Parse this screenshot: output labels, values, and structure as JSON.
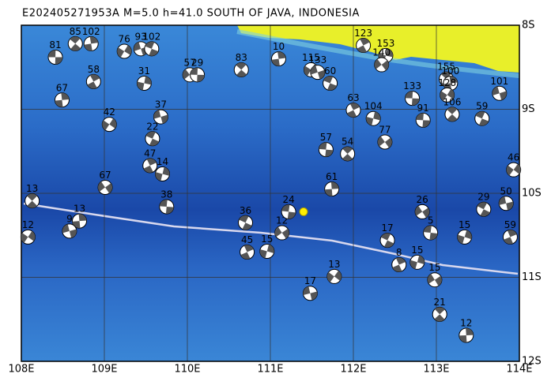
{
  "title": "E202405271953A  M=5.0  h=41.0  SOUTH OF JAVA, INDONESIA",
  "map": {
    "lonlim": [
      108,
      114
    ],
    "latlim": [
      8,
      12
    ],
    "xticks": [
      {
        "value": 108,
        "label": "108E"
      },
      {
        "value": 109,
        "label": "109E"
      },
      {
        "value": 110,
        "label": "110E"
      },
      {
        "value": 111,
        "label": "111E"
      },
      {
        "value": 112,
        "label": "112E"
      },
      {
        "value": 113,
        "label": "113E"
      },
      {
        "value": 114,
        "label": "114E"
      }
    ],
    "yticks": [
      {
        "value": 8,
        "label": "8S"
      },
      {
        "value": 9,
        "label": "9S"
      },
      {
        "value": 10,
        "label": "10S"
      },
      {
        "value": 11,
        "label": "11S"
      },
      {
        "value": 12,
        "label": "12S"
      }
    ],
    "mainshock": {
      "lon": 111.4,
      "lat": 10.22,
      "color": "#ffee00"
    },
    "events": [
      {
        "lon": 108.41,
        "lat": 8.38,
        "depth": "81"
      },
      {
        "lon": 108.65,
        "lat": 8.22,
        "depth": "85"
      },
      {
        "lon": 108.84,
        "lat": 8.22,
        "depth": "102"
      },
      {
        "lon": 109.24,
        "lat": 8.31,
        "depth": "76"
      },
      {
        "lon": 109.44,
        "lat": 8.28,
        "depth": "93"
      },
      {
        "lon": 109.57,
        "lat": 8.28,
        "depth": "102"
      },
      {
        "lon": 108.87,
        "lat": 8.67,
        "depth": "58"
      },
      {
        "lon": 109.48,
        "lat": 8.69,
        "depth": "31"
      },
      {
        "lon": 110.03,
        "lat": 8.59,
        "depth": "57"
      },
      {
        "lon": 110.12,
        "lat": 8.59,
        "depth": "29"
      },
      {
        "lon": 110.65,
        "lat": 8.53,
        "depth": "83"
      },
      {
        "lon": 111.1,
        "lat": 8.4,
        "depth": "10"
      },
      {
        "lon": 111.49,
        "lat": 8.53,
        "depth": "115"
      },
      {
        "lon": 111.57,
        "lat": 8.56,
        "depth": "133"
      },
      {
        "lon": 111.72,
        "lat": 8.69,
        "depth": "60"
      },
      {
        "lon": 112.12,
        "lat": 8.24,
        "depth": "123"
      },
      {
        "lon": 112.39,
        "lat": 8.36,
        "depth": "153"
      },
      {
        "lon": 112.34,
        "lat": 8.47,
        "depth": "140"
      },
      {
        "lon": 112.71,
        "lat": 8.87,
        "depth": "133"
      },
      {
        "lon": 113.12,
        "lat": 8.64,
        "depth": "155"
      },
      {
        "lon": 113.17,
        "lat": 8.69,
        "depth": "100"
      },
      {
        "lon": 113.13,
        "lat": 8.83,
        "depth": "128"
      },
      {
        "lon": 113.76,
        "lat": 8.81,
        "depth": "101"
      },
      {
        "lon": 113.55,
        "lat": 9.11,
        "depth": "59"
      },
      {
        "lon": 112.0,
        "lat": 9.01,
        "depth": "63"
      },
      {
        "lon": 112.24,
        "lat": 9.11,
        "depth": "104"
      },
      {
        "lon": 112.38,
        "lat": 9.39,
        "depth": "77"
      },
      {
        "lon": 112.84,
        "lat": 9.13,
        "depth": "91"
      },
      {
        "lon": 113.19,
        "lat": 9.06,
        "depth": "106"
      },
      {
        "lon": 108.49,
        "lat": 8.89,
        "depth": "67"
      },
      {
        "lon": 109.06,
        "lat": 9.18,
        "depth": "42"
      },
      {
        "lon": 109.68,
        "lat": 9.09,
        "depth": "37"
      },
      {
        "lon": 109.58,
        "lat": 9.35,
        "depth": "22"
      },
      {
        "lon": 109.55,
        "lat": 9.67,
        "depth": "47"
      },
      {
        "lon": 109.7,
        "lat": 9.77,
        "depth": "14"
      },
      {
        "lon": 109.01,
        "lat": 9.93,
        "depth": "67"
      },
      {
        "lon": 109.75,
        "lat": 10.16,
        "depth": "38"
      },
      {
        "lon": 108.13,
        "lat": 10.09,
        "depth": "13"
      },
      {
        "lon": 108.7,
        "lat": 10.33,
        "depth": "13"
      },
      {
        "lon": 108.08,
        "lat": 10.52,
        "depth": "12"
      },
      {
        "lon": 108.58,
        "lat": 10.45,
        "depth": "9"
      },
      {
        "lon": 110.7,
        "lat": 10.35,
        "depth": "36"
      },
      {
        "lon": 110.72,
        "lat": 10.7,
        "depth": "45"
      },
      {
        "lon": 110.96,
        "lat": 10.69,
        "depth": "15"
      },
      {
        "lon": 111.14,
        "lat": 10.47,
        "depth": "12"
      },
      {
        "lon": 111.67,
        "lat": 9.48,
        "depth": "57"
      },
      {
        "lon": 111.93,
        "lat": 9.53,
        "depth": "54"
      },
      {
        "lon": 111.74,
        "lat": 9.95,
        "depth": "61"
      },
      {
        "lon": 111.77,
        "lat": 10.99,
        "depth": "13"
      },
      {
        "lon": 111.48,
        "lat": 11.19,
        "depth": "17"
      },
      {
        "lon": 112.41,
        "lat": 10.56,
        "depth": "17"
      },
      {
        "lon": 112.55,
        "lat": 10.85,
        "depth": "8"
      },
      {
        "lon": 112.77,
        "lat": 10.82,
        "depth": "15"
      },
      {
        "lon": 112.83,
        "lat": 10.22,
        "depth": "26"
      },
      {
        "lon": 112.93,
        "lat": 10.47,
        "depth": "5"
      },
      {
        "lon": 113.04,
        "lat": 11.44,
        "depth": "21"
      },
      {
        "lon": 113.36,
        "lat": 11.69,
        "depth": "12"
      },
      {
        "lon": 113.93,
        "lat": 9.72,
        "depth": "46"
      },
      {
        "lon": 113.84,
        "lat": 10.12,
        "depth": "50"
      },
      {
        "lon": 113.57,
        "lat": 10.19,
        "depth": "29"
      },
      {
        "lon": 113.89,
        "lat": 10.52,
        "depth": "59"
      },
      {
        "lon": 113.34,
        "lat": 10.52,
        "depth": "15"
      },
      {
        "lon": 112.98,
        "lat": 11.03,
        "depth": "15"
      },
      {
        "lon": 111.22,
        "lat": 10.22,
        "depth": "24"
      }
    ]
  }
}
